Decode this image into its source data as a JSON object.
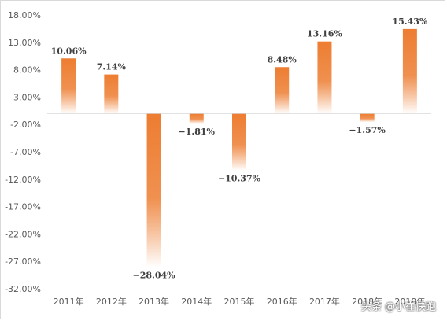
{
  "chart_data": {
    "type": "bar",
    "title": "",
    "xlabel": "",
    "ylabel": "",
    "categories": [
      "2011年",
      "2012年",
      "2013年",
      "2014年",
      "2015年",
      "2016年",
      "2017年",
      "2018年",
      "2019年"
    ],
    "values": [
      10.06,
      7.14,
      -28.04,
      -1.81,
      -10.37,
      8.48,
      13.16,
      -1.57,
      15.43
    ],
    "data_labels": [
      "10.06%",
      "7.14%",
      "−28.04%",
      "−1.81%",
      "−10.37%",
      "8.48%",
      "13.16%",
      "−1.57%",
      "15.43%"
    ],
    "y_ticks": [
      18,
      13,
      8,
      3,
      -2,
      -7,
      -12,
      -17,
      -22,
      -27,
      -32
    ],
    "y_tick_labels": [
      "18.00%",
      "13.00%",
      "8.00%",
      "3.00%",
      "-2.00%",
      "-7.00%",
      "-12.00%",
      "-17.00%",
      "-22.00%",
      "-27.00%",
      "-32.00%"
    ],
    "ylim": [
      -32,
      18
    ],
    "grid": false,
    "legend": "none",
    "colors": {
      "bar": "#ed7d31",
      "bar_fade": "#ffffff",
      "axis": "#d9d9d9"
    }
  },
  "watermark": "头条 @小崔快跑"
}
